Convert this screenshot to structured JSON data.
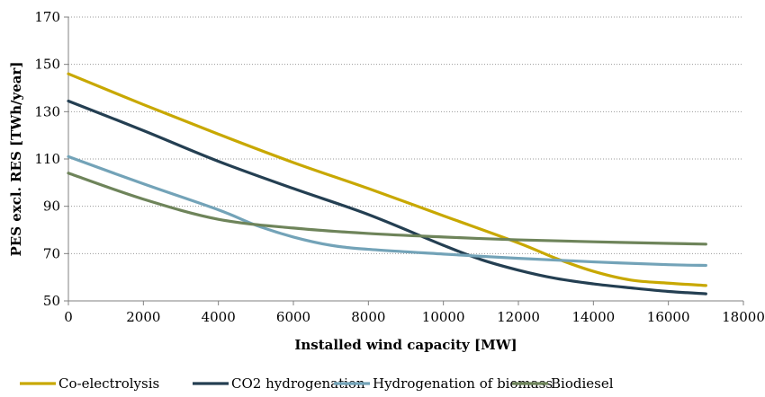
{
  "chart_data": {
    "type": "line",
    "xlabel": "Installed wind capacity [MW]",
    "ylabel": "PES excl. RES [TWh/year]",
    "xlim": [
      0,
      18000
    ],
    "ylim": [
      50,
      170
    ],
    "x_ticks": [
      0,
      2000,
      4000,
      6000,
      8000,
      10000,
      12000,
      14000,
      16000,
      18000
    ],
    "y_ticks": [
      50,
      70,
      90,
      110,
      130,
      150,
      170
    ],
    "grid": "horizontal dotted",
    "legend_position": "bottom",
    "series": [
      {
        "name": "Co-electrolysis",
        "color": "#c8a800",
        "x": [
          0,
          2000,
          4000,
          6000,
          8000,
          10000,
          12000,
          13000,
          14000,
          15000,
          16000,
          17000
        ],
        "y": [
          146,
          133,
          120.5,
          108.5,
          97.5,
          86,
          74.5,
          68,
          62.5,
          58.8,
          57.5,
          56.5
        ]
      },
      {
        "name": "CO2 hydrogenation",
        "color": "#243f52",
        "x": [
          0,
          2000,
          4000,
          6000,
          8000,
          10000,
          11000,
          12000,
          13000,
          14000,
          15000,
          16000,
          17000
        ],
        "y": [
          134.5,
          122,
          109,
          97.5,
          86.5,
          73.5,
          67.5,
          63,
          59.5,
          57.2,
          55.5,
          54,
          53
        ]
      },
      {
        "name": "Hydrogenation of biomass",
        "color": "#73a3b8",
        "x": [
          0,
          2000,
          4000,
          5000,
          6000,
          7000,
          8000,
          10000,
          12000,
          14000,
          16000,
          17000
        ],
        "y": [
          111,
          99.5,
          88.5,
          82,
          77,
          73.5,
          71.8,
          69.8,
          68,
          66.5,
          65.3,
          65
        ]
      },
      {
        "name": "Biodiesel",
        "color": "#6e845a",
        "x": [
          0,
          2000,
          4000,
          6000,
          8000,
          10000,
          12000,
          14000,
          16000,
          17000
        ],
        "y": [
          104,
          93,
          84.5,
          80.8,
          78.5,
          77,
          75.8,
          75,
          74.3,
          74
        ]
      }
    ]
  }
}
